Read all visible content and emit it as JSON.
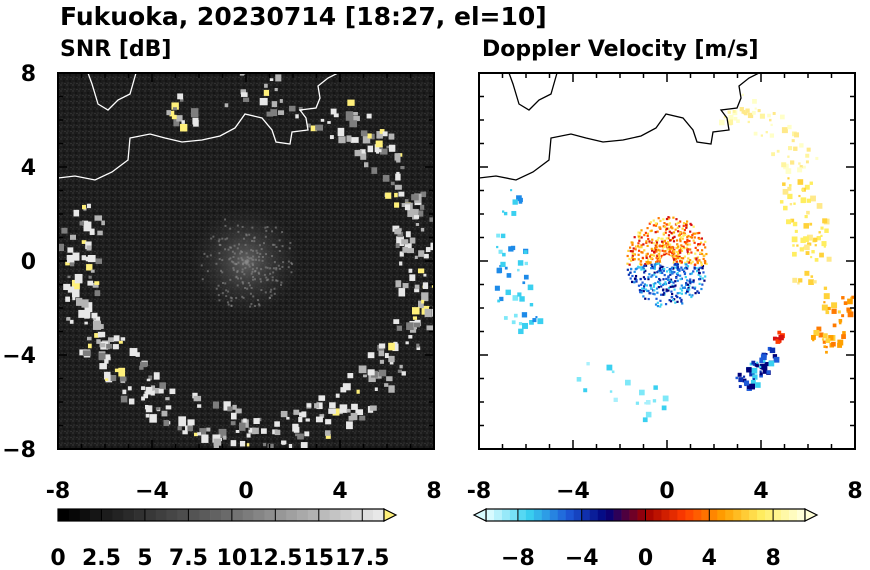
{
  "title": "Fukuoka, 20230714 [18:27, el=10]",
  "chart_data": [
    {
      "type": "heatmap",
      "title": "SNR [dB]",
      "xlim": [
        -8,
        8
      ],
      "ylim": [
        -8,
        8
      ],
      "xticks": [
        "-8",
        "−4",
        "0",
        "4",
        "8"
      ],
      "yticks": [
        "8",
        "4",
        "0",
        "−4",
        "−8"
      ],
      "colorbar": {
        "min": 0,
        "max": 18.75,
        "extend": "max",
        "tick_values": [
          0,
          2.5,
          5,
          7.5,
          10,
          12.5,
          15,
          17.5
        ],
        "tick_labels": [
          "0",
          "2.5",
          "5",
          "7.5",
          "10",
          "12.5",
          "15",
          "17.5"
        ],
        "colors": [
          "#000000",
          "#ffffff",
          "#fff07a"
        ]
      },
      "background_color": "#1e1e1e"
    },
    {
      "type": "heatmap",
      "title": "Doppler Velocity [m/s]",
      "xlim": [
        -8,
        8
      ],
      "ylim": [
        -8,
        8
      ],
      "xticks": [
        "-8",
        "−4",
        "0",
        "4",
        "8"
      ],
      "yticks": [],
      "colorbar": {
        "min": -10,
        "max": 10,
        "extend": "both",
        "tick_values": [
          -8,
          -4,
          0,
          4,
          8
        ],
        "tick_labels": [
          "−8",
          "−4",
          "0",
          "4",
          "8"
        ],
        "colors": [
          "#d8fbff",
          "#3ad0f0",
          "#1d5ad8",
          "#00007a",
          "#a00000",
          "#ff3c00",
          "#ffa000",
          "#ffee60",
          "#ffffd8"
        ]
      },
      "background_color": "#ffffff"
    }
  ]
}
